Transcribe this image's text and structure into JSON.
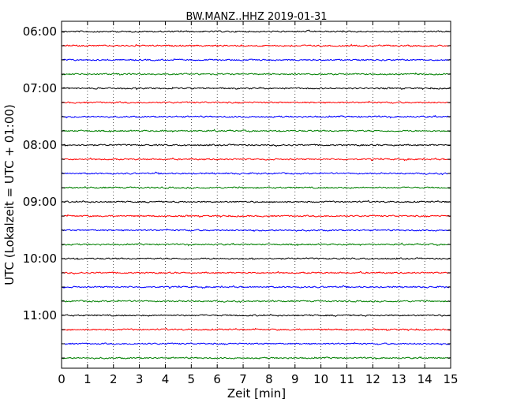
{
  "chart_data": {
    "type": "line",
    "title": "BW.MANZ..HHZ 2019-01-31",
    "xlabel": "Zeit  [min]",
    "ylabel": "UTC (Lokalzeit = UTC + 01:00)",
    "xlim": [
      0,
      15
    ],
    "x_ticks": [
      0,
      1,
      2,
      3,
      4,
      5,
      6,
      7,
      8,
      9,
      10,
      11,
      12,
      13,
      14,
      15
    ],
    "y_tick_labels": [
      "06:00",
      "07:00",
      "08:00",
      "09:00",
      "10:00",
      "11:00"
    ],
    "traces_per_hour": 4,
    "trace_count": 24,
    "grid": "vertical-dotted",
    "trace_colors": [
      "#000000",
      "#ff0000",
      "#0000ff",
      "#008000"
    ]
  }
}
